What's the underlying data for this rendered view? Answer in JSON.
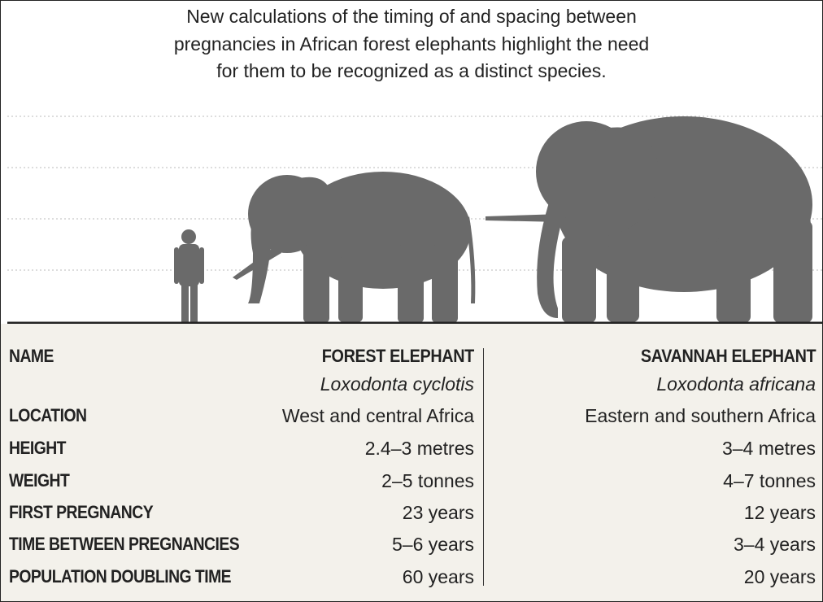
{
  "intro": [
    "New calculations of the timing of and spacing between",
    "pregnancies in African forest elephants highlight the need",
    "for them to be recognized as a distinct species."
  ],
  "table": {
    "header_label": "NAME",
    "species": [
      {
        "name": "FOREST ELEPHANT",
        "latin": "Loxodonta cyclotis"
      },
      {
        "name": "SAVANNAH ELEPHANT",
        "latin": "Loxodonta africana"
      }
    ],
    "rows": [
      {
        "label": "LOCATION",
        "values": [
          "West and central Africa",
          "Eastern and southern Africa"
        ]
      },
      {
        "label": "HEIGHT",
        "values": [
          "2.4–3 metres",
          "3–4 metres"
        ]
      },
      {
        "label": "WEIGHT",
        "values": [
          "2–5 tonnes",
          "4–7 tonnes"
        ]
      },
      {
        "label": "FIRST PREGNANCY",
        "values": [
          "23 years",
          "12 years"
        ]
      },
      {
        "label": "TIME BETWEEN PREGNANCIES",
        "values": [
          "5–6 years",
          "3–4 years"
        ]
      },
      {
        "label": "POPULATION DOUBLING TIME",
        "values": [
          "60 years",
          "20 years"
        ]
      }
    ]
  }
}
